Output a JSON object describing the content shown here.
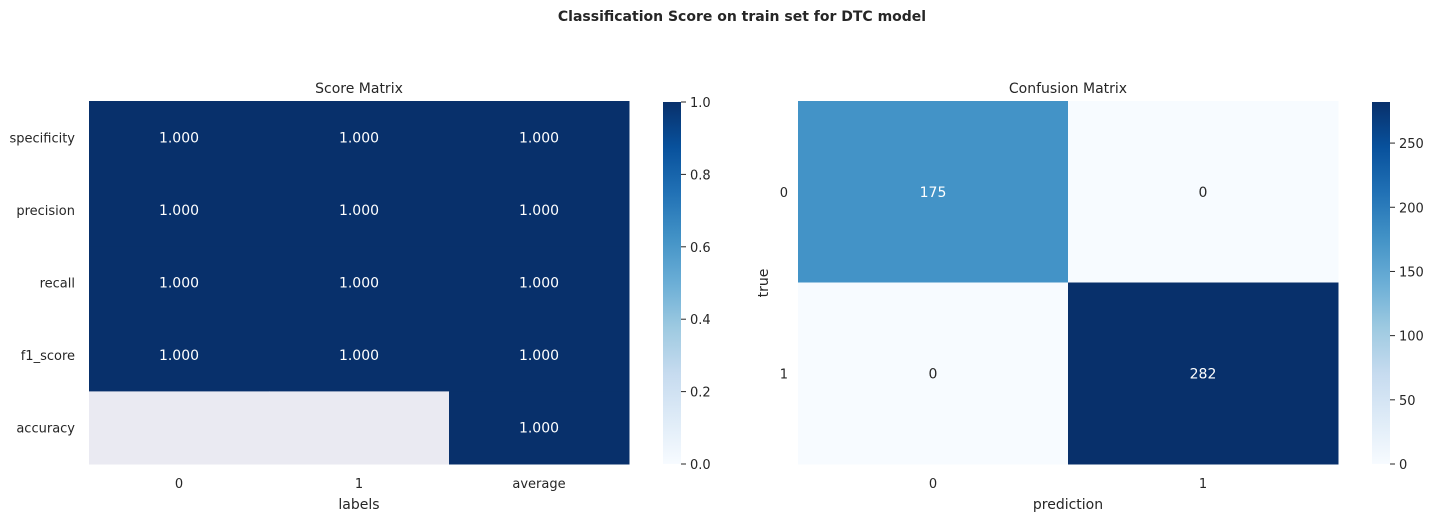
{
  "suptitle": "Classification Score on train set for DTC model",
  "chart_data": [
    {
      "type": "heatmap",
      "title": "Score Matrix",
      "xlabel": "labels",
      "ylabel": "",
      "x_categories": [
        "0",
        "1",
        "average"
      ],
      "y_categories": [
        "specificity",
        "precision",
        "recall",
        "f1_score",
        "accuracy"
      ],
      "values": [
        [
          1.0,
          1.0,
          1.0
        ],
        [
          1.0,
          1.0,
          1.0
        ],
        [
          1.0,
          1.0,
          1.0
        ],
        [
          1.0,
          1.0,
          1.0
        ],
        [
          null,
          null,
          1.0
        ]
      ],
      "annotations": [
        [
          "1.000",
          "1.000",
          "1.000"
        ],
        [
          "1.000",
          "1.000",
          "1.000"
        ],
        [
          "1.000",
          "1.000",
          "1.000"
        ],
        [
          "1.000",
          "1.000",
          "1.000"
        ],
        [
          "",
          "",
          "1.000"
        ]
      ],
      "colormap": "Blues",
      "missing_color": "#eaeaf2",
      "vmin": 0,
      "vmax": 1,
      "colorbar_ticks": [
        "0.0",
        "0.2",
        "0.4",
        "0.6",
        "0.8",
        "1.0"
      ]
    },
    {
      "type": "heatmap",
      "title": "Confusion Matrix",
      "xlabel": "prediction",
      "ylabel": "true",
      "x_categories": [
        "0",
        "1"
      ],
      "y_categories": [
        "0",
        "1"
      ],
      "values": [
        [
          175,
          0
        ],
        [
          0,
          282
        ]
      ],
      "annotations": [
        [
          "175",
          "0"
        ],
        [
          "0",
          "282"
        ]
      ],
      "colormap": "Blues",
      "vmin": 0,
      "vmax": 282,
      "colorbar_ticks": [
        "0",
        "50",
        "100",
        "150",
        "200",
        "250"
      ]
    }
  ]
}
